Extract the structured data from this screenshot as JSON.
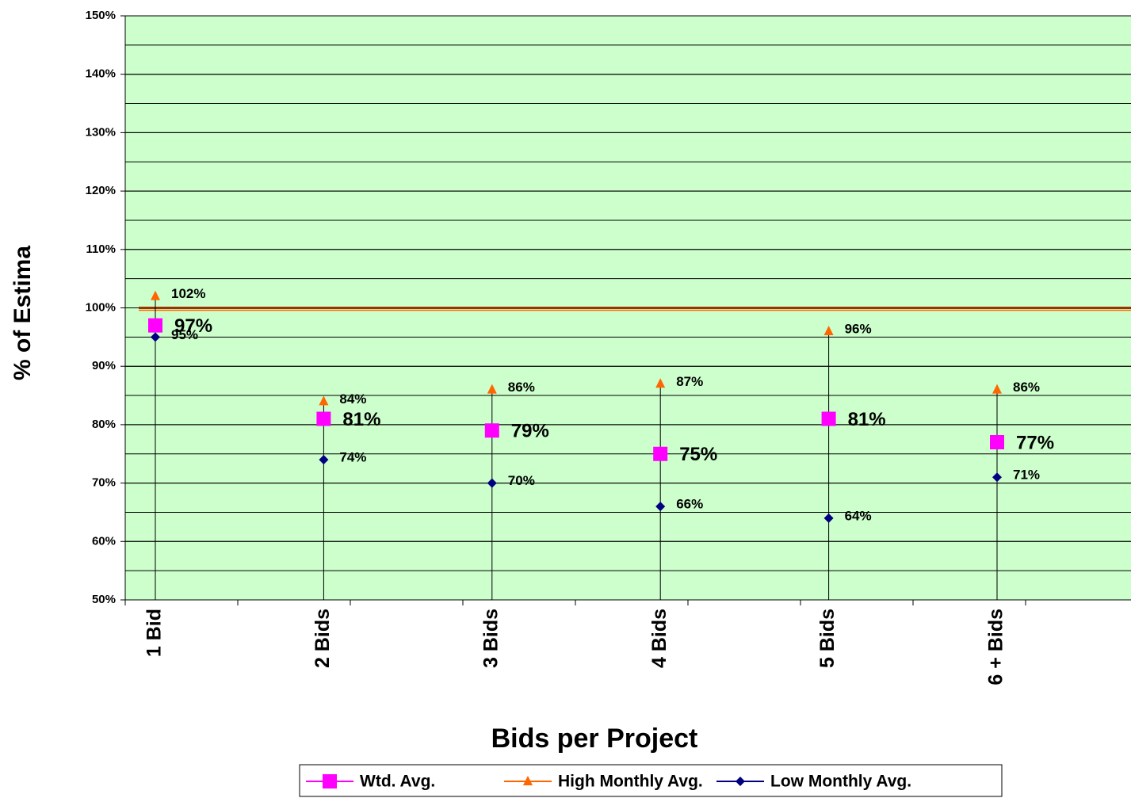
{
  "chart_data": {
    "type": "hilo",
    "x_label": "Bids per Project",
    "y_label": "% of Estima",
    "categories": [
      "1 Bid",
      "2 Bids",
      "3 Bids",
      "4 Bids",
      "5 Bids",
      "6 + Bids"
    ],
    "series": [
      {
        "name": "Wtd. Avg.",
        "color": "#ff00ff",
        "marker": "square",
        "values": [
          97,
          81,
          79,
          75,
          81,
          77
        ],
        "value_labels": [
          "97%",
          "81%",
          "79%",
          "75%",
          "81%",
          "77%"
        ]
      },
      {
        "name": "High Monthly Avg.",
        "color": "#ff6600",
        "marker": "triangle",
        "values": [
          102,
          84,
          86,
          87,
          96,
          86
        ],
        "value_labels": [
          "102%",
          "84%",
          "86%",
          "87%",
          "96%",
          "86%"
        ]
      },
      {
        "name": "Low Monthly Avg.",
        "color": "#000080",
        "marker": "diamond",
        "values": [
          95,
          74,
          70,
          66,
          64,
          71
        ],
        "value_labels": [
          "95%",
          "74%",
          "70%",
          "66%",
          "64%",
          "71%"
        ]
      }
    ],
    "ylim": [
      50,
      150
    ],
    "yticks": [
      {
        "value": 50,
        "label": "50%"
      },
      {
        "value": 60,
        "label": "60%"
      },
      {
        "value": 70,
        "label": "70%"
      },
      {
        "value": 80,
        "label": "80%"
      },
      {
        "value": 90,
        "label": "90%"
      },
      {
        "value": 100,
        "label": "100%"
      },
      {
        "value": 110,
        "label": "110%"
      },
      {
        "value": 120,
        "label": "120%"
      },
      {
        "value": 130,
        "label": "130%"
      },
      {
        "value": 140,
        "label": "140%"
      },
      {
        "value": 150,
        "label": "150%"
      }
    ],
    "minor_grid_step": 5,
    "grid": true,
    "reference_line": 100,
    "plot_background": "#ccffcc",
    "legend": "bottom"
  }
}
